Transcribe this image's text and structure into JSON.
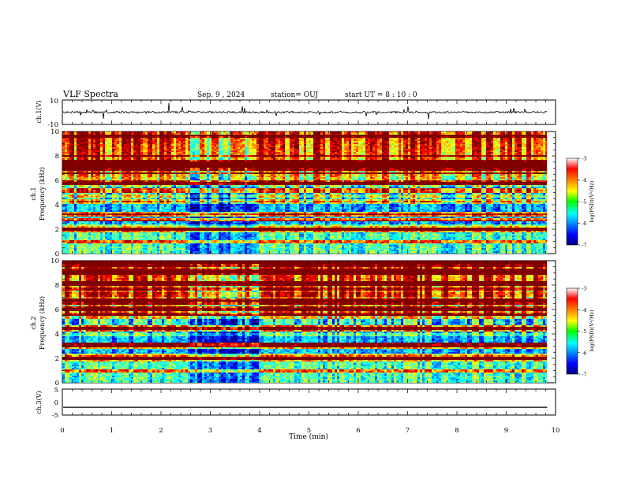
{
  "header": {
    "title": "VLF Spectra",
    "date": "Sep. 9 , 2024",
    "station": "station= OUJ",
    "start": "start UT =  8 : 10 : 0"
  },
  "chart_data": [
    {
      "type": "line",
      "panel": "ch1-waveform",
      "ylabel": "ch.1(V)",
      "ylim": [
        -10,
        10
      ],
      "yticks": [
        "10",
        "-10"
      ],
      "baseline": 0
    },
    {
      "type": "heatmap",
      "panel": "ch1-spectrogram",
      "ylabel_line1": "ch.1",
      "ylabel_line2": "Frequency (kHz)",
      "ylim": [
        0,
        10
      ],
      "yticks": [
        "10",
        "8",
        "6",
        "4",
        "2",
        "0"
      ],
      "colorbar": {
        "label": "log(PSD)(V²/Hz)",
        "range": [
          -7,
          -3
        ],
        "ticks": [
          "-3",
          "-4",
          "-5",
          "-6",
          "-7"
        ]
      },
      "quiet_interval_min": [
        2.5,
        3.95
      ]
    },
    {
      "type": "heatmap",
      "panel": "ch2-spectrogram",
      "ylabel_line1": "ch.2",
      "ylabel_line2": "Frequency (kHz)",
      "ylim": [
        0,
        10
      ],
      "yticks": [
        "10",
        "8",
        "6",
        "4",
        "2",
        "0"
      ],
      "colorbar": {
        "label": "log(PSD)(V²/Hz)",
        "range": [
          -7,
          -3
        ],
        "ticks": [
          "-3",
          "-4",
          "-5",
          "-6",
          "-7"
        ]
      },
      "quiet_interval_min": [
        2.5,
        3.95
      ]
    },
    {
      "type": "line",
      "panel": "ch3-waveform",
      "ylabel": "ch.3(V)",
      "ylim": [
        -5,
        5
      ],
      "yticks": [
        "5",
        "0",
        "-5"
      ],
      "baseline": -2
    }
  ],
  "xaxis": {
    "label": "Time (min)",
    "range": [
      0,
      10
    ],
    "data_end": 9.83,
    "ticks": [
      "0",
      "1",
      "2",
      "3",
      "4",
      "5",
      "6",
      "7",
      "8",
      "9",
      "10"
    ]
  }
}
